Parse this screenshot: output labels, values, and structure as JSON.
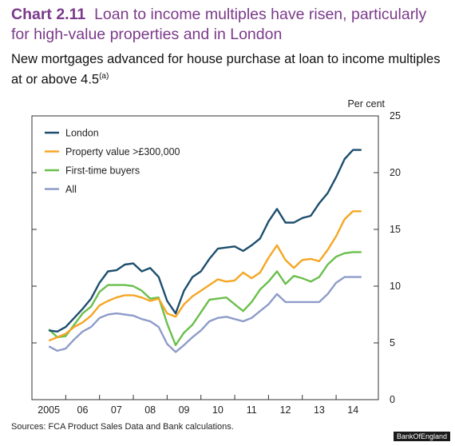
{
  "header": {
    "chart_number": "Chart 2.11",
    "title": "Loan to income multiples have risen, particularly for high-value properties and in London",
    "subtitle": "New mortgages advanced for house purchase at loan to income multiples at or above 4.5",
    "subtitle_note": "(a)"
  },
  "footer": {
    "source": "Sources: FCA Product Sales Data and Bank calculations.",
    "watermark": "BankOfEngland"
  },
  "chart_data": {
    "type": "line",
    "unit_label": "Per cent",
    "ylim": [
      0,
      25
    ],
    "y_ticks": [
      0,
      5,
      10,
      15,
      20,
      25
    ],
    "xlim": [
      2004.5,
      2014.75
    ],
    "x_tick_labels": [
      {
        "x": 2005,
        "label": "2005"
      },
      {
        "x": 2006,
        "label": "06"
      },
      {
        "x": 2007,
        "label": "07"
      },
      {
        "x": 2008,
        "label": "08"
      },
      {
        "x": 2009,
        "label": "09"
      },
      {
        "x": 2010,
        "label": "10"
      },
      {
        "x": 2011,
        "label": "11"
      },
      {
        "x": 2012,
        "label": "12"
      },
      {
        "x": 2013,
        "label": "13"
      },
      {
        "x": 2014,
        "label": "14"
      }
    ],
    "x": [
      2005.0,
      2005.25,
      2005.5,
      2005.75,
      2006.0,
      2006.25,
      2006.5,
      2006.75,
      2007.0,
      2007.25,
      2007.5,
      2007.75,
      2008.0,
      2008.25,
      2008.5,
      2008.75,
      2009.0,
      2009.25,
      2009.5,
      2009.75,
      2010.0,
      2010.25,
      2010.5,
      2010.75,
      2011.0,
      2011.25,
      2011.5,
      2011.75,
      2012.0,
      2012.25,
      2012.5,
      2012.75,
      2013.0,
      2013.25,
      2013.5,
      2013.75,
      2014.0,
      2014.25
    ],
    "series": [
      {
        "name": "London",
        "color": "#1d4e6e",
        "values": [
          6.1,
          6.0,
          6.4,
          7.2,
          8.0,
          8.9,
          10.3,
          11.3,
          11.4,
          11.9,
          12.0,
          11.3,
          11.6,
          10.8,
          8.7,
          7.6,
          9.6,
          10.8,
          11.3,
          12.4,
          13.3,
          13.4,
          13.5,
          13.1,
          13.6,
          14.2,
          15.7,
          16.8,
          15.6,
          15.6,
          16.0,
          16.2,
          17.3,
          18.2,
          19.6,
          21.2,
          22.0,
          22.0
        ]
      },
      {
        "name": "Property value >£300,000",
        "color": "#f5a623",
        "values": [
          5.2,
          5.5,
          5.8,
          6.4,
          6.8,
          7.4,
          8.3,
          8.7,
          9.0,
          9.2,
          9.2,
          9.0,
          8.7,
          8.9,
          7.6,
          7.3,
          8.4,
          9.1,
          9.6,
          10.1,
          10.6,
          10.4,
          10.5,
          11.2,
          10.7,
          11.2,
          12.5,
          13.6,
          12.3,
          11.6,
          12.3,
          12.4,
          12.2,
          13.2,
          14.4,
          15.9,
          16.6,
          16.6
        ]
      },
      {
        "name": "First-time buyers",
        "color": "#6abf4b",
        "values": [
          6.2,
          5.5,
          5.6,
          6.6,
          7.6,
          8.2,
          9.5,
          10.1,
          10.1,
          10.1,
          10.0,
          9.6,
          8.9,
          9.0,
          6.7,
          4.8,
          5.9,
          6.6,
          7.7,
          8.8,
          8.9,
          9.0,
          8.4,
          7.8,
          8.6,
          9.7,
          10.4,
          11.3,
          10.2,
          10.9,
          10.7,
          10.4,
          10.8,
          11.9,
          12.6,
          12.9,
          13.0,
          13.0
        ]
      },
      {
        "name": "All",
        "color": "#8e9cc9",
        "values": [
          4.7,
          4.3,
          4.5,
          5.3,
          6.0,
          6.4,
          7.2,
          7.5,
          7.6,
          7.5,
          7.4,
          7.1,
          6.9,
          6.4,
          4.9,
          4.2,
          4.8,
          5.5,
          6.1,
          6.9,
          7.2,
          7.3,
          7.1,
          6.9,
          7.2,
          7.8,
          8.4,
          9.3,
          8.6,
          8.6,
          8.6,
          8.6,
          8.6,
          9.3,
          10.3,
          10.8,
          10.8,
          10.8
        ]
      }
    ],
    "legend_position": "top-left",
    "grid": false
  }
}
